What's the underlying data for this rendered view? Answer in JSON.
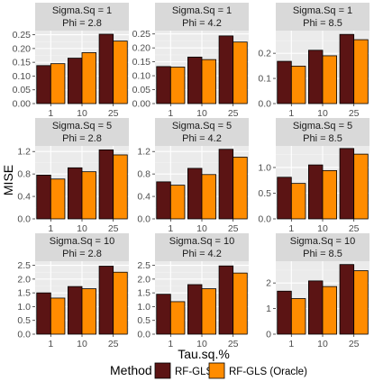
{
  "figure": {
    "ylabel": "MISE",
    "xlabel": "Tau.sq.%",
    "legend_title": "Method"
  },
  "colors": {
    "panel_bg": "#ebebeb",
    "strip_bg": "#d9d9d9",
    "grid_major": "#ffffff",
    "grid_minor": "#f4f4f4",
    "bar_outline": "#000000"
  },
  "chart_data": {
    "type": "bar",
    "layout": "facet grid 3x3",
    "categories": [
      "1",
      "10",
      "25"
    ],
    "legend": {
      "title": "Method",
      "placement": "bottom"
    },
    "series": [
      {
        "name": "RF-GLS",
        "color": "#5b1414"
      },
      {
        "name": "RF-GLS (Oracle)",
        "color": "#ff8c00"
      }
    ],
    "panels": [
      {
        "strip": [
          "Sigma.Sq = 1",
          "Phi = 2.8"
        ],
        "yticks": [
          "0.00",
          "0.05",
          "0.10",
          "0.15",
          "0.20",
          "0.25"
        ],
        "ylim": [
          0,
          0.265
        ],
        "values": [
          [
            0.138,
            0.165,
            0.252
          ],
          [
            0.145,
            0.185,
            0.227
          ]
        ]
      },
      {
        "strip": [
          "Sigma.Sq = 1",
          "Phi = 4.2"
        ],
        "yticks": [
          "0.00",
          "0.05",
          "0.10",
          "0.15",
          "0.20",
          "0.25"
        ],
        "ylim": [
          0,
          0.262
        ],
        "values": [
          [
            0.133,
            0.167,
            0.243
          ],
          [
            0.131,
            0.158,
            0.221
          ]
        ]
      },
      {
        "strip": [
          "Sigma.Sq = 1",
          "Phi = 8.5"
        ],
        "yticks": [
          "0.0",
          "0.1",
          "0.2"
        ],
        "ylim": [
          0,
          0.29
        ],
        "values": [
          [
            0.168,
            0.212,
            0.275
          ],
          [
            0.149,
            0.19,
            0.254
          ]
        ]
      },
      {
        "strip": [
          "Sigma.Sq = 5",
          "Phi = 2.8"
        ],
        "yticks": [
          "0.0",
          "0.4",
          "0.8",
          "1.2"
        ],
        "ylim": [
          0,
          1.3
        ],
        "values": [
          [
            0.78,
            0.91,
            1.23
          ],
          [
            0.71,
            0.84,
            1.14
          ]
        ]
      },
      {
        "strip": [
          "Sigma.Sq = 5",
          "Phi = 4.2"
        ],
        "yticks": [
          "0.0",
          "0.4",
          "0.8",
          "1.2"
        ],
        "ylim": [
          0,
          1.3
        ],
        "values": [
          [
            0.66,
            0.9,
            1.24
          ],
          [
            0.6,
            0.79,
            1.1
          ]
        ]
      },
      {
        "strip": [
          "Sigma.Sq = 5",
          "Phi = 8.5"
        ],
        "yticks": [
          "0.0",
          "0.5",
          "1.0"
        ],
        "ylim": [
          0,
          1.42
        ],
        "values": [
          [
            0.81,
            1.05,
            1.37
          ],
          [
            0.69,
            0.94,
            1.26
          ]
        ]
      },
      {
        "strip": [
          "Sigma.Sq = 10",
          "Phi = 2.8"
        ],
        "yticks": [
          "0.0",
          "0.5",
          "1.0",
          "1.5",
          "2.0",
          "2.5"
        ],
        "ylim": [
          0,
          2.65
        ],
        "values": [
          [
            1.5,
            1.73,
            2.47
          ],
          [
            1.31,
            1.65,
            2.25
          ]
        ]
      },
      {
        "strip": [
          "Sigma.Sq = 10",
          "Phi = 4.2"
        ],
        "yticks": [
          "0.0",
          "0.5",
          "1.0",
          "1.5",
          "2.0",
          "2.5"
        ],
        "ylim": [
          0,
          2.65
        ],
        "values": [
          [
            1.45,
            1.8,
            2.48
          ],
          [
            1.18,
            1.65,
            2.22
          ]
        ]
      },
      {
        "strip": [
          "Sigma.Sq = 10",
          "Phi = 8.5"
        ],
        "yticks": [
          "0",
          "1",
          "2"
        ],
        "ylim": [
          0,
          2.85
        ],
        "values": [
          [
            1.68,
            2.08,
            2.72
          ],
          [
            1.39,
            1.86,
            2.48
          ]
        ]
      }
    ]
  }
}
